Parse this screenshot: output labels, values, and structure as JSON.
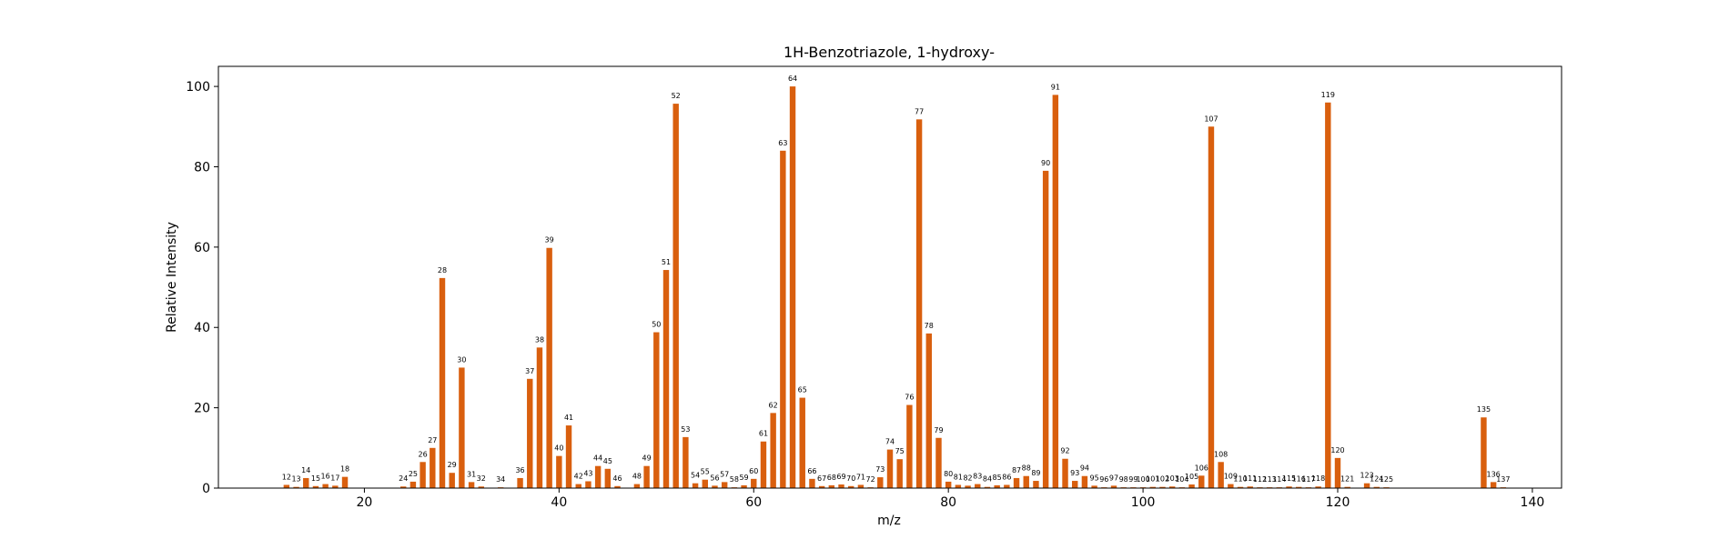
{
  "chart_data": {
    "type": "bar",
    "title": "1H-Benzotriazole, 1-hydroxy-",
    "xlabel": "m/z",
    "ylabel": "Relative Intensity",
    "xlim": [
      5,
      143
    ],
    "ylim": [
      0,
      105
    ],
    "xticks": [
      20,
      40,
      60,
      80,
      100,
      120,
      140
    ],
    "yticks": [
      0,
      20,
      40,
      60,
      80,
      100
    ],
    "grid": false,
    "bar_color": "#d95f0e",
    "x": [
      12,
      13,
      14,
      15,
      16,
      17,
      18,
      24,
      25,
      26,
      27,
      28,
      29,
      30,
      31,
      32,
      34,
      36,
      37,
      38,
      39,
      40,
      41,
      42,
      43,
      44,
      45,
      46,
      48,
      49,
      50,
      51,
      52,
      53,
      54,
      55,
      56,
      57,
      58,
      59,
      60,
      61,
      62,
      63,
      64,
      65,
      66,
      67,
      68,
      69,
      70,
      71,
      72,
      73,
      74,
      75,
      76,
      77,
      78,
      79,
      80,
      81,
      82,
      83,
      84,
      85,
      86,
      87,
      88,
      89,
      90,
      91,
      92,
      93,
      94,
      95,
      96,
      97,
      98,
      99,
      100,
      101,
      102,
      103,
      104,
      105,
      106,
      107,
      108,
      109,
      110,
      111,
      112,
      113,
      114,
      115,
      116,
      117,
      118,
      119,
      120,
      121,
      123,
      124,
      125,
      135,
      136,
      137
    ],
    "values": [
      0.8,
      0.3,
      2.5,
      0.5,
      1.0,
      0.6,
      2.8,
      0.4,
      1.6,
      6.5,
      10.0,
      52.3,
      3.8,
      30.0,
      1.5,
      0.4,
      0.2,
      2.5,
      27.2,
      35.0,
      59.8,
      8.0,
      15.6,
      1.0,
      1.7,
      5.5,
      4.8,
      0.5,
      1.0,
      5.5,
      38.8,
      54.3,
      95.7,
      12.7,
      1.2,
      2.1,
      0.6,
      1.5,
      0.2,
      0.7,
      2.3,
      11.6,
      18.7,
      84.0,
      100.0,
      22.5,
      2.3,
      0.5,
      0.7,
      0.9,
      0.5,
      0.8,
      0.2,
      2.7,
      9.6,
      7.2,
      20.7,
      91.8,
      38.5,
      12.5,
      1.6,
      0.8,
      0.6,
      1.0,
      0.3,
      0.7,
      0.8,
      2.5,
      3.0,
      1.8,
      79.0,
      97.9,
      7.3,
      1.8,
      3.0,
      0.6,
      0.2,
      0.6,
      0.2,
      0.2,
      0.2,
      0.3,
      0.3,
      0.4,
      0.2,
      0.9,
      3.1,
      90.0,
      6.5,
      1.0,
      0.3,
      0.4,
      0.2,
      0.2,
      0.2,
      0.4,
      0.3,
      0.2,
      0.4,
      96.0,
      7.5,
      0.3,
      1.2,
      0.3,
      0.2,
      17.6,
      1.5,
      0.2
    ]
  }
}
